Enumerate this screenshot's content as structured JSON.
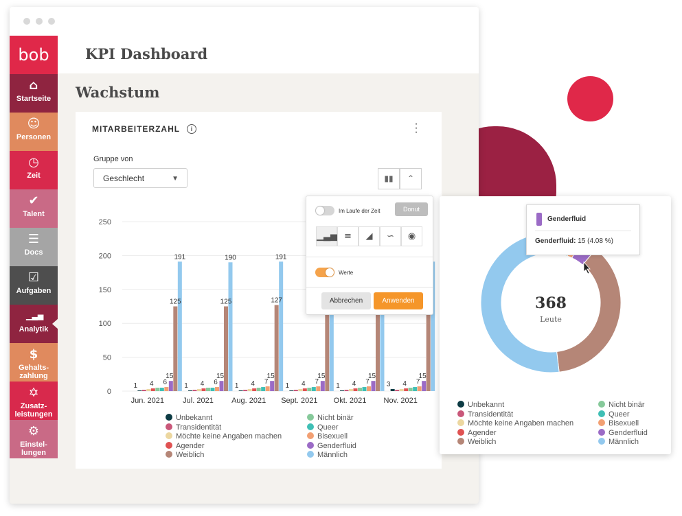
{
  "app": {
    "logo": "bob",
    "page_title": "KPI Dashboard",
    "section_title": "Wachstum"
  },
  "sidebar": {
    "items": [
      {
        "label": "Startseite",
        "icon": "home-icon",
        "color": "#8f2440"
      },
      {
        "label": "Personen",
        "icon": "people-icon",
        "color": "#e08a5e"
      },
      {
        "label": "Zeit",
        "icon": "clock-icon",
        "color": "#d8294c"
      },
      {
        "label": "Talent",
        "icon": "award-icon",
        "color": "#c96a86"
      },
      {
        "label": "Docs",
        "icon": "docs-icon",
        "color": "#a5a5a5"
      },
      {
        "label": "Aufgaben",
        "icon": "tasks-icon",
        "color": "#4e4e4e"
      },
      {
        "label": "Analytik",
        "icon": "analytics-icon",
        "color": "#8f2440"
      },
      {
        "label": "Gehalts-\nzahlung",
        "icon": "payroll-icon",
        "color": "#e08a5e"
      },
      {
        "label": "Zusatz-\nleistungen",
        "icon": "gift-icon",
        "color": "#d8294c"
      },
      {
        "label": "Einstel-\nlungen",
        "icon": "gear-icon",
        "color": "#c96a86"
      }
    ]
  },
  "card": {
    "title": "MITARBEITERZAHL",
    "group_label": "Gruppe von",
    "group_value": "Geschlecht"
  },
  "popup": {
    "over_time_label": "Im Laufe der Zeit",
    "values_label": "Werte",
    "tooltip": "Donut",
    "cancel": "Abbrechen",
    "apply": "Anwenden"
  },
  "chart_data": [
    {
      "type": "bar",
      "categories": [
        "Jun. 2021",
        "Jul. 2021",
        "Aug. 2021",
        "Sept. 2021",
        "Okt. 2021",
        "Nov. 2021"
      ],
      "ylim": [
        0,
        250
      ],
      "yticks": [
        0,
        50,
        100,
        150,
        200,
        250
      ],
      "series": [
        {
          "name": "Unbekannt",
          "color": "#0d3b44",
          "values": [
            1,
            1,
            1,
            1,
            1,
            3
          ]
        },
        {
          "name": "Transidentität",
          "color": "#c9587a",
          "values": [
            2,
            2,
            2,
            2,
            2,
            2
          ]
        },
        {
          "name": "Möchte keine Angaben machen",
          "color": "#ecd7a0",
          "values": [
            3,
            3,
            3,
            3,
            3,
            3
          ]
        },
        {
          "name": "Agender",
          "color": "#e05252",
          "values": [
            4,
            4,
            4,
            4,
            4,
            4
          ]
        },
        {
          "name": "Nicht binär",
          "color": "#86c99a",
          "values": [
            5,
            5,
            5,
            5,
            5,
            5
          ]
        },
        {
          "name": "Queer",
          "color": "#3fbfb5",
          "values": [
            5,
            5,
            6,
            6,
            6,
            6
          ]
        },
        {
          "name": "Bisexuell",
          "color": "#f2a073",
          "values": [
            6,
            6,
            7,
            7,
            7,
            7
          ]
        },
        {
          "name": "Genderfluid",
          "color": "#9b6bc6",
          "values": [
            15,
            15,
            15,
            15,
            15,
            15
          ]
        },
        {
          "name": "Weiblich",
          "color": "#b58677",
          "values": [
            125,
            125,
            127,
            127,
            127,
            127
          ]
        },
        {
          "name": "Männlich",
          "color": "#93c9ee",
          "values": [
            191,
            190,
            191,
            191,
            191,
            191
          ]
        }
      ],
      "data_labels": [
        [
          "1",
          "4",
          "6",
          "15",
          "125",
          "191"
        ],
        [
          "1",
          "4",
          "6",
          "15",
          "125",
          "190"
        ],
        [
          "1",
          "4",
          "7",
          "15",
          "127",
          "191"
        ],
        [
          "1",
          "4",
          "7",
          "15",
          "",
          ""
        ],
        [
          "1",
          "4",
          "7",
          "15",
          "",
          ""
        ],
        [
          "3",
          "4",
          "7",
          "15",
          "",
          ""
        ]
      ],
      "legend": [
        {
          "name": "Unbekannt",
          "color": "#0d3b44"
        },
        {
          "name": "Transidentität",
          "color": "#c9587a"
        },
        {
          "name": "Möchte keine Angaben machen",
          "color": "#ecd7a0"
        },
        {
          "name": "Agender",
          "color": "#e05252"
        },
        {
          "name": "Weiblich",
          "color": "#b58677"
        },
        {
          "name": "Nicht binär",
          "color": "#86c99a"
        },
        {
          "name": "Queer",
          "color": "#3fbfb5"
        },
        {
          "name": "Bisexuell",
          "color": "#f2a073"
        },
        {
          "name": "Genderfluid",
          "color": "#9b6bc6"
        },
        {
          "name": "Männlich",
          "color": "#93c9ee"
        }
      ]
    },
    {
      "type": "pie",
      "total": "368",
      "total_label": "Leute",
      "slices": [
        {
          "name": "Unbekannt",
          "value": 1,
          "color": "#0d3b44"
        },
        {
          "name": "Transidentität",
          "value": 2,
          "color": "#c9587a"
        },
        {
          "name": "Möchte keine Angaben machen",
          "value": 3,
          "color": "#ecd7a0"
        },
        {
          "name": "Agender",
          "value": 4,
          "color": "#e05252"
        },
        {
          "name": "Nicht binär",
          "value": 5,
          "color": "#86c99a"
        },
        {
          "name": "Queer",
          "value": 5,
          "color": "#3fbfb5"
        },
        {
          "name": "Bisexuell",
          "value": 6,
          "color": "#f2a073"
        },
        {
          "name": "Genderfluid",
          "value": 15,
          "color": "#9b6bc6"
        },
        {
          "name": "Weiblich",
          "value": 136,
          "color": "#b58677"
        },
        {
          "name": "Männlich",
          "value": 191,
          "color": "#93c9ee"
        }
      ],
      "tooltip": {
        "title": "Genderfluid",
        "label": "Genderfluid:",
        "value": "15 (4.08 %)"
      }
    }
  ]
}
